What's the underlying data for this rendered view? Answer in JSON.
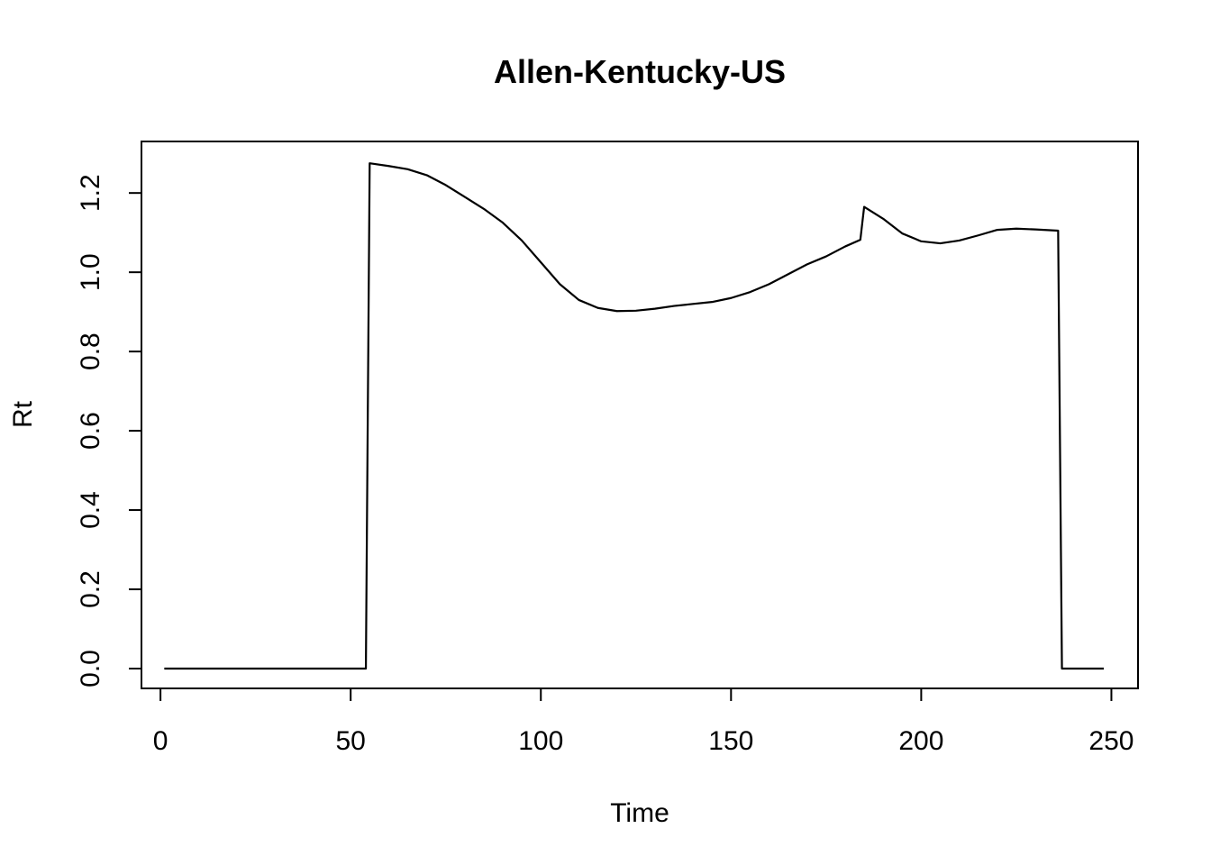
{
  "chart_data": {
    "type": "line",
    "title": "Allen-Kentucky-US",
    "xlabel": "Time",
    "ylabel": "Rt",
    "xlim": [
      -5,
      257
    ],
    "ylim": [
      -0.05,
      1.33
    ],
    "xticks": [
      0,
      50,
      100,
      150,
      200,
      250
    ],
    "yticks": [
      0.0,
      0.2,
      0.4,
      0.6,
      0.8,
      1.0,
      1.2
    ],
    "ytick_labels": [
      "0.0",
      "0.2",
      "0.4",
      "0.6",
      "0.8",
      "1.0",
      "1.2"
    ],
    "grid": false,
    "legend": "none",
    "series": [
      {
        "color": "#000000",
        "x": [
          1,
          54,
          55,
          60,
          65,
          70,
          75,
          80,
          85,
          90,
          95,
          100,
          105,
          110,
          115,
          120,
          125,
          130,
          135,
          140,
          145,
          150,
          155,
          160,
          165,
          170,
          175,
          180,
          184,
          185,
          190,
          195,
          200,
          205,
          210,
          215,
          220,
          225,
          230,
          236,
          237,
          248
        ],
        "y": [
          0.0,
          0.0,
          1.275,
          1.268,
          1.26,
          1.245,
          1.22,
          1.19,
          1.16,
          1.125,
          1.08,
          1.025,
          0.97,
          0.93,
          0.91,
          0.902,
          0.903,
          0.908,
          0.915,
          0.92,
          0.925,
          0.935,
          0.95,
          0.97,
          0.995,
          1.02,
          1.04,
          1.065,
          1.082,
          1.165,
          1.135,
          1.098,
          1.078,
          1.073,
          1.08,
          1.093,
          1.107,
          1.11,
          1.108,
          1.105,
          0.0,
          0.0
        ]
      }
    ]
  }
}
